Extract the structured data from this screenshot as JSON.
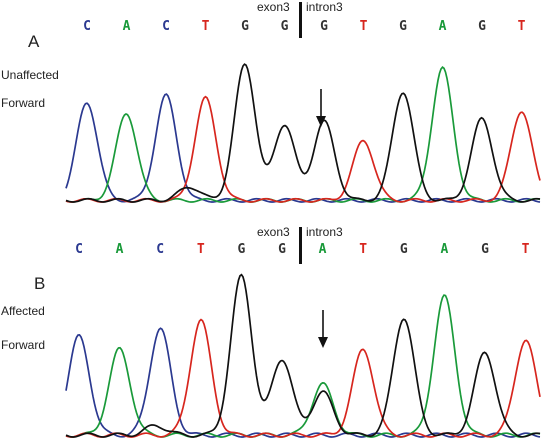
{
  "panels": [
    {
      "id": "A",
      "letter": "A",
      "status": "Unaffected",
      "direction": "Forward",
      "junction": {
        "left": "exon3",
        "right": "intron3"
      },
      "bases": [
        {
          "b": "C",
          "color": "#2b3990"
        },
        {
          "b": "A",
          "color": "#1a9a3a"
        },
        {
          "b": "C",
          "color": "#2b3990"
        },
        {
          "b": "T",
          "color": "#d7261e"
        },
        {
          "b": "G",
          "color": "#333333"
        },
        {
          "b": "G",
          "color": "#333333"
        },
        {
          "b": "G",
          "color": "#333333"
        },
        {
          "b": "T",
          "color": "#d7261e"
        },
        {
          "b": "G",
          "color": "#333333"
        },
        {
          "b": "A",
          "color": "#1a9a3a"
        },
        {
          "b": "G",
          "color": "#333333"
        },
        {
          "b": "T",
          "color": "#d7261e"
        }
      ],
      "mutation_index": 6,
      "peaks": [
        {
          "ch": "C",
          "h": 0.72
        },
        {
          "ch": "A",
          "h": 0.64
        },
        {
          "ch": "C",
          "h": 0.77
        },
        {
          "ch": "T",
          "h": 0.75
        },
        {
          "ch": "G",
          "h": 1.0
        },
        {
          "ch": "G",
          "h": 0.56
        },
        {
          "ch": "G",
          "h": 0.58
        },
        {
          "ch": "T",
          "h": 0.44
        },
        {
          "ch": "G",
          "h": 0.8
        },
        {
          "ch": "A",
          "h": 0.97
        },
        {
          "ch": "G",
          "h": 0.6
        },
        {
          "ch": "T",
          "h": 0.66
        }
      ],
      "secondary_peaks": [
        {
          "pos": 2.6,
          "ch": "G",
          "h": 0.1
        }
      ]
    },
    {
      "id": "B",
      "letter": "B",
      "status": "Affected",
      "direction": "Forward",
      "junction": {
        "left": "exon3",
        "right": "intron3"
      },
      "bases": [
        {
          "b": "C",
          "color": "#2b3990"
        },
        {
          "b": "A",
          "color": "#1a9a3a"
        },
        {
          "b": "C",
          "color": "#2b3990"
        },
        {
          "b": "T",
          "color": "#d7261e"
        },
        {
          "b": "G",
          "color": "#333333"
        },
        {
          "b": "G",
          "color": "#333333"
        },
        {
          "b": "A",
          "color": "#1a9a3a"
        },
        {
          "b": "T",
          "color": "#d7261e"
        },
        {
          "b": "G",
          "color": "#333333"
        },
        {
          "b": "A",
          "color": "#1a9a3a"
        },
        {
          "b": "G",
          "color": "#333333"
        },
        {
          "b": "T",
          "color": "#d7261e"
        }
      ],
      "mutation_index": 6,
      "peaks": [
        {
          "ch": "C",
          "h": 0.62
        },
        {
          "ch": "A",
          "h": 0.54
        },
        {
          "ch": "C",
          "h": 0.67
        },
        {
          "ch": "T",
          "h": 0.72
        },
        {
          "ch": "G",
          "h": 1.0
        },
        {
          "ch": "G",
          "h": 0.48
        },
        {
          "ch": "A",
          "h": 0.32
        },
        {
          "ch": "T",
          "h": 0.54
        },
        {
          "ch": "G",
          "h": 0.74
        },
        {
          "ch": "A",
          "h": 0.87
        },
        {
          "ch": "G",
          "h": 0.52
        },
        {
          "ch": "T",
          "h": 0.6
        }
      ],
      "secondary_peaks": [
        {
          "pos": 6,
          "ch": "G",
          "h": 0.27
        },
        {
          "pos": 1.9,
          "ch": "G",
          "h": 0.06
        }
      ]
    }
  ],
  "channel_colors": {
    "A": "#1a9a3a",
    "C": "#2b3990",
    "G": "#111111",
    "T": "#d7261e"
  }
}
